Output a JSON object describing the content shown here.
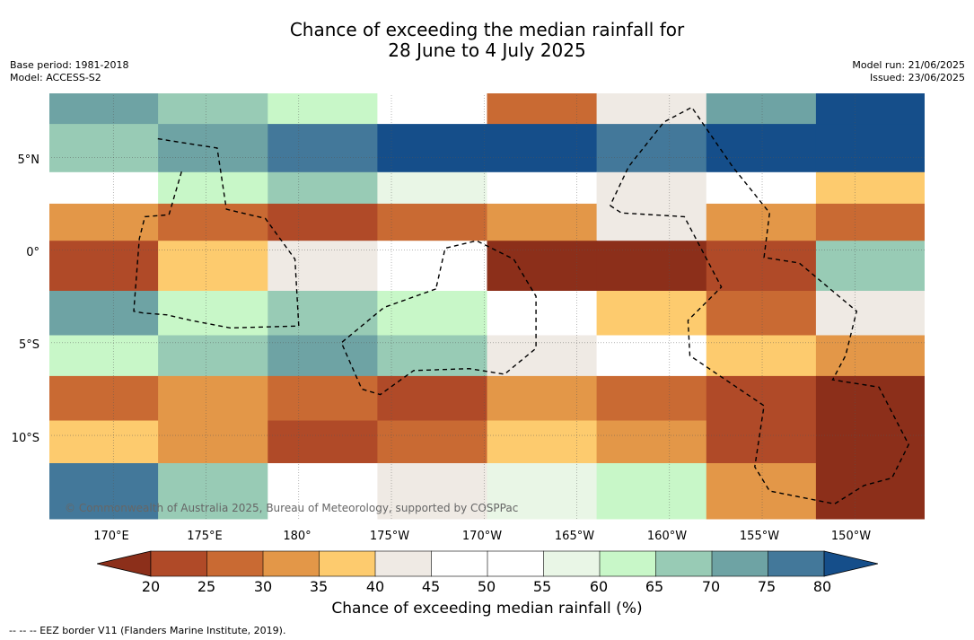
{
  "title_line1": "Chance of exceeding the median rainfall for",
  "title_line2": "28 June to 4 July 2025",
  "meta": {
    "base_period": "Base period: 1981-2018",
    "model": "Model: ACCESS-S2",
    "model_run": "Model run: 21/06/2025",
    "issued": "Issued: 23/06/2025"
  },
  "latitude_labels": [
    "5°N",
    "0°",
    "5°S",
    "10°S"
  ],
  "longitude_labels": [
    "170°E",
    "175°E",
    "180°",
    "175°W",
    "170°W",
    "165°W",
    "160°W",
    "155°W",
    "150°W"
  ],
  "colorbar": {
    "ticks": [
      "20",
      "25",
      "30",
      "35",
      "40",
      "45",
      "50",
      "55",
      "60",
      "65",
      "70",
      "75",
      "80"
    ],
    "colors": [
      "#8c2f1a",
      "#b04a28",
      "#c96a33",
      "#e39748",
      "#fdcb6e",
      "#efeae4",
      "#ffffff",
      "#ffffff",
      "#e9f6e6",
      "#c8f7c8",
      "#98cbb5",
      "#6ea3a4",
      "#43789a",
      "#154e8a"
    ],
    "title": "Chance of exceeding median rainfall (%)"
  },
  "copyright": "© Commonwealth of Australia 2025, Bureau of Meteorology, supported by COSPPac",
  "footnote": "-- -- -- EEZ border V11 (Flanders Marine Institute, 2019).",
  "map_bands": [
    {
      "lat_from": 8.5,
      "lat_to": 6.8,
      "colors": [
        "#6ea3a4",
        "#98cbb5",
        "#c8f7c8",
        "#ffffff",
        "#c96a33",
        "#efeae4",
        "#6ea3a4",
        "#154e8a"
      ]
    },
    {
      "lat_from": 6.8,
      "lat_to": 4.2,
      "colors": [
        "#98cbb5",
        "#6ea3a4",
        "#43789a",
        "#154e8a",
        "#154e8a",
        "#43789a",
        "#154e8a",
        "#154e8a"
      ]
    },
    {
      "lat_from": 4.2,
      "lat_to": 2.5,
      "colors": [
        "#ffffff",
        "#c8f7c8",
        "#98cbb5",
        "#e9f6e6",
        "#ffffff",
        "#efeae4",
        "#ffffff",
        "#fdcb6e"
      ]
    },
    {
      "lat_from": 2.5,
      "lat_to": 0.5,
      "colors": [
        "#e39748",
        "#c96a33",
        "#b04a28",
        "#c96a33",
        "#e39748",
        "#efeae4",
        "#e39748",
        "#c96a33"
      ]
    },
    {
      "lat_from": 0.5,
      "lat_to": -2.2,
      "colors": [
        "#b04a28",
        "#fdcb6e",
        "#efeae4",
        "#ffffff",
        "#8c2f1a",
        "#8c2f1a",
        "#b04a28",
        "#98cbb5"
      ]
    },
    {
      "lat_from": -2.2,
      "lat_to": -4.6,
      "colors": [
        "#6ea3a4",
        "#c8f7c8",
        "#98cbb5",
        "#c8f7c8",
        "#ffffff",
        "#fdcb6e",
        "#c96a33",
        "#efeae4"
      ]
    },
    {
      "lat_from": -4.6,
      "lat_to": -6.8,
      "colors": [
        "#c8f7c8",
        "#98cbb5",
        "#6ea3a4",
        "#98cbb5",
        "#efeae4",
        "#ffffff",
        "#fdcb6e",
        "#e39748"
      ]
    },
    {
      "lat_from": -6.8,
      "lat_to": -9.2,
      "colors": [
        "#c96a33",
        "#e39748",
        "#c96a33",
        "#b04a28",
        "#e39748",
        "#c96a33",
        "#b04a28",
        "#8c2f1a"
      ]
    },
    {
      "lat_from": -9.2,
      "lat_to": -11.5,
      "colors": [
        "#fdcb6e",
        "#e39748",
        "#b04a28",
        "#c96a33",
        "#fdcb6e",
        "#e39748",
        "#b04a28",
        "#8c2f1a"
      ]
    },
    {
      "lat_from": -11.5,
      "lat_to": -14.5,
      "colors": [
        "#43789a",
        "#98cbb5",
        "#ffffff",
        "#efeae4",
        "#e9f6e6",
        "#c8f7c8",
        "#e39748",
        "#8c2f1a"
      ]
    }
  ],
  "eez_border": [
    [
      [
        172.4,
        6.0
      ],
      [
        175.6,
        5.5
      ],
      [
        176.1,
        2.2
      ],
      [
        178.2,
        1.7
      ],
      [
        179.8,
        -0.5
      ],
      [
        180.0,
        -4.1
      ],
      [
        176.3,
        -4.2
      ],
      [
        174.2,
        -3.8
      ],
      [
        172.9,
        -3.5
      ],
      [
        171.6,
        -3.4
      ],
      [
        171.1,
        -3.3
      ],
      [
        171.4,
        0.6
      ],
      [
        171.7,
        1.8
      ],
      [
        173.0,
        1.9
      ],
      [
        173.7,
        4.3
      ]
    ],
    [
      [
        187.4,
        -2.1
      ],
      [
        184.6,
        -3.1
      ],
      [
        182.3,
        -5.0
      ],
      [
        183.4,
        -7.5
      ],
      [
        184.4,
        -7.8
      ],
      [
        186.2,
        -6.5
      ],
      [
        189.2,
        -6.4
      ],
      [
        191.1,
        -6.7
      ],
      [
        192.8,
        -5.3
      ],
      [
        192.8,
        -2.5
      ],
      [
        191.6,
        -0.5
      ],
      [
        189.6,
        0.5
      ],
      [
        187.9,
        0.1
      ],
      [
        187.4,
        -2.1
      ]
    ],
    [
      [
        196.8,
        2.4
      ],
      [
        197.4,
        2.0
      ],
      [
        200.8,
        1.8
      ],
      [
        202.8,
        -2.0
      ],
      [
        201.0,
        -3.8
      ],
      [
        201.1,
        -5.7
      ],
      [
        205.1,
        -8.4
      ],
      [
        204.6,
        -11.7
      ],
      [
        205.4,
        -13.0
      ],
      [
        208.9,
        -13.7
      ],
      [
        210.5,
        -12.7
      ],
      [
        212.0,
        -12.3
      ],
      [
        212.9,
        -10.5
      ],
      [
        211.3,
        -7.4
      ],
      [
        208.8,
        -7.0
      ],
      [
        209.5,
        -5.7
      ],
      [
        210.1,
        -3.3
      ],
      [
        207.0,
        -0.7
      ],
      [
        205.1,
        -0.4
      ],
      [
        205.4,
        2.0
      ],
      [
        203.4,
        4.5
      ],
      [
        201.2,
        7.7
      ],
      [
        199.7,
        6.9
      ],
      [
        197.8,
        4.5
      ],
      [
        196.8,
        2.4
      ]
    ]
  ]
}
